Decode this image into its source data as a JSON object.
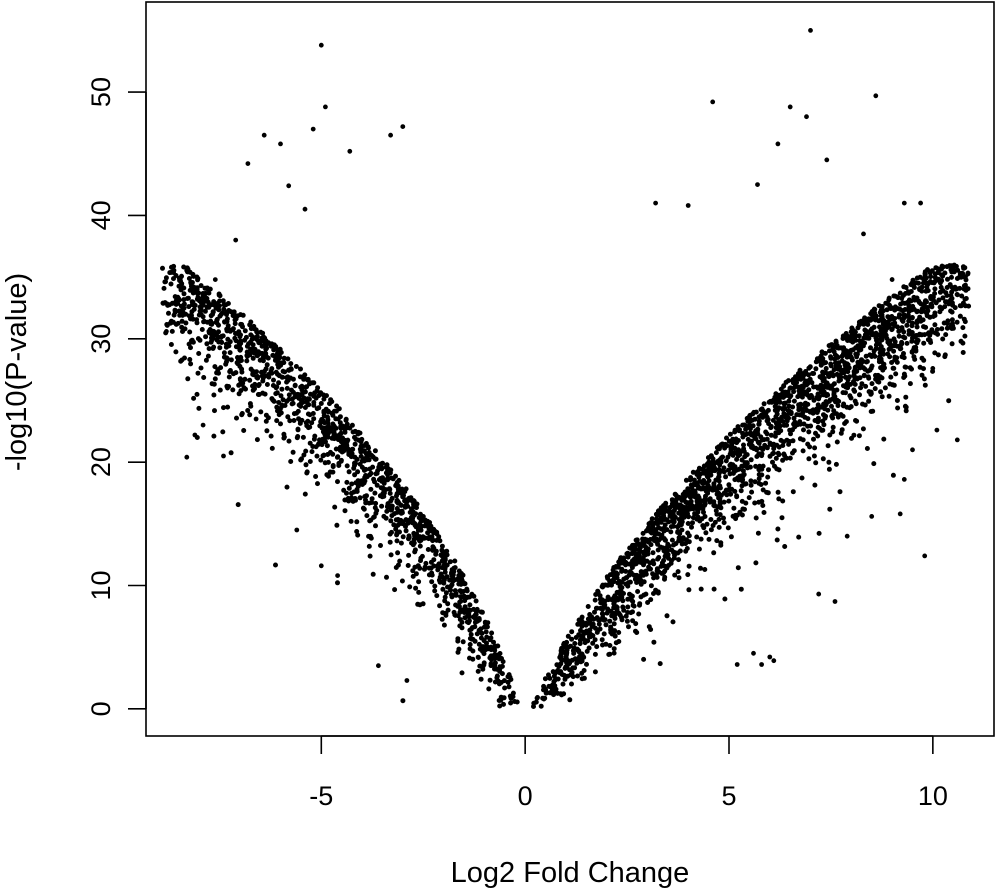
{
  "chart_data": {
    "type": "scatter",
    "title": "",
    "xlabel": "Log2 Fold Change",
    "ylabel": "-log10(P-value)",
    "xlim": [
      -9.3,
      11.5
    ],
    "ylim": [
      -2.2,
      57.3
    ],
    "x_ticks": [
      -5,
      0,
      5,
      10
    ],
    "x_tick_labels": [
      "-5",
      "0",
      "5",
      "10"
    ],
    "y_ticks": [
      0,
      10,
      20,
      30,
      40,
      50
    ],
    "y_tick_labels": [
      "0",
      "10",
      "20",
      "30",
      "40",
      "50"
    ],
    "grid": false,
    "legend": "none",
    "point_color": "#000000",
    "series": [
      {
        "shape": "volcano",
        "approx_points": 22000,
        "dense_region_max_y": 36,
        "points": [
          {
            "x": -5.0,
            "y": 53.8
          },
          {
            "x": 7.0,
            "y": 55.0
          },
          {
            "x": 8.6,
            "y": 49.7
          },
          {
            "x": 4.6,
            "y": 49.2
          },
          {
            "x": 6.5,
            "y": 48.8
          },
          {
            "x": -4.9,
            "y": 48.8
          },
          {
            "x": -5.2,
            "y": 47.0
          },
          {
            "x": -3.0,
            "y": 47.2
          },
          {
            "x": 6.9,
            "y": 48.0
          },
          {
            "x": -6.4,
            "y": 46.5
          },
          {
            "x": -6.0,
            "y": 45.8
          },
          {
            "x": -4.3,
            "y": 45.2
          },
          {
            "x": -3.3,
            "y": 46.5
          },
          {
            "x": 6.2,
            "y": 45.8
          },
          {
            "x": 7.4,
            "y": 44.5
          },
          {
            "x": -6.8,
            "y": 44.2
          },
          {
            "x": -5.8,
            "y": 42.4
          },
          {
            "x": 5.7,
            "y": 42.5
          },
          {
            "x": 9.3,
            "y": 41.0
          },
          {
            "x": 9.7,
            "y": 41.0
          },
          {
            "x": 3.2,
            "y": 41.0
          },
          {
            "x": 4.0,
            "y": 40.8
          },
          {
            "x": -5.4,
            "y": 40.5
          },
          {
            "x": -7.1,
            "y": 38.0
          },
          {
            "x": 8.3,
            "y": 38.5
          },
          {
            "x": -8.2,
            "y": 34.5
          },
          {
            "x": -7.6,
            "y": 34.8
          },
          {
            "x": -8.8,
            "y": 30.6
          },
          {
            "x": 9.0,
            "y": 34.8
          },
          {
            "x": 8.7,
            "y": 31.5
          },
          {
            "x": 9.9,
            "y": 30.5
          },
          {
            "x": 10.0,
            "y": 27.6
          },
          {
            "x": -7.3,
            "y": 26.0
          },
          {
            "x": -6.6,
            "y": 23.5
          },
          {
            "x": -7.9,
            "y": 23.0
          },
          {
            "x": -8.1,
            "y": 22.2
          },
          {
            "x": -8.3,
            "y": 20.4
          },
          {
            "x": -7.4,
            "y": 20.5
          },
          {
            "x": 10.6,
            "y": 21.8
          },
          {
            "x": 10.1,
            "y": 22.6
          },
          {
            "x": 9.5,
            "y": 21.0
          },
          {
            "x": 9.3,
            "y": 18.6
          },
          {
            "x": 9.2,
            "y": 15.8
          },
          {
            "x": 9.8,
            "y": 12.4
          },
          {
            "x": 8.5,
            "y": 15.6
          },
          {
            "x": 7.9,
            "y": 14.0
          },
          {
            "x": 7.6,
            "y": 8.7
          },
          {
            "x": 7.2,
            "y": 9.3
          },
          {
            "x": -5.6,
            "y": 14.5
          },
          {
            "x": -5.0,
            "y": 11.6
          },
          {
            "x": -4.6,
            "y": 10.8
          },
          {
            "x": 6.0,
            "y": 4.2
          },
          {
            "x": 5.6,
            "y": 4.5
          },
          {
            "x": 5.2,
            "y": 3.6
          },
          {
            "x": 6.1,
            "y": 3.9
          },
          {
            "x": 5.8,
            "y": 3.6
          },
          {
            "x": -3.6,
            "y": 3.5
          },
          {
            "x": -2.9,
            "y": 2.3
          }
        ]
      }
    ]
  }
}
